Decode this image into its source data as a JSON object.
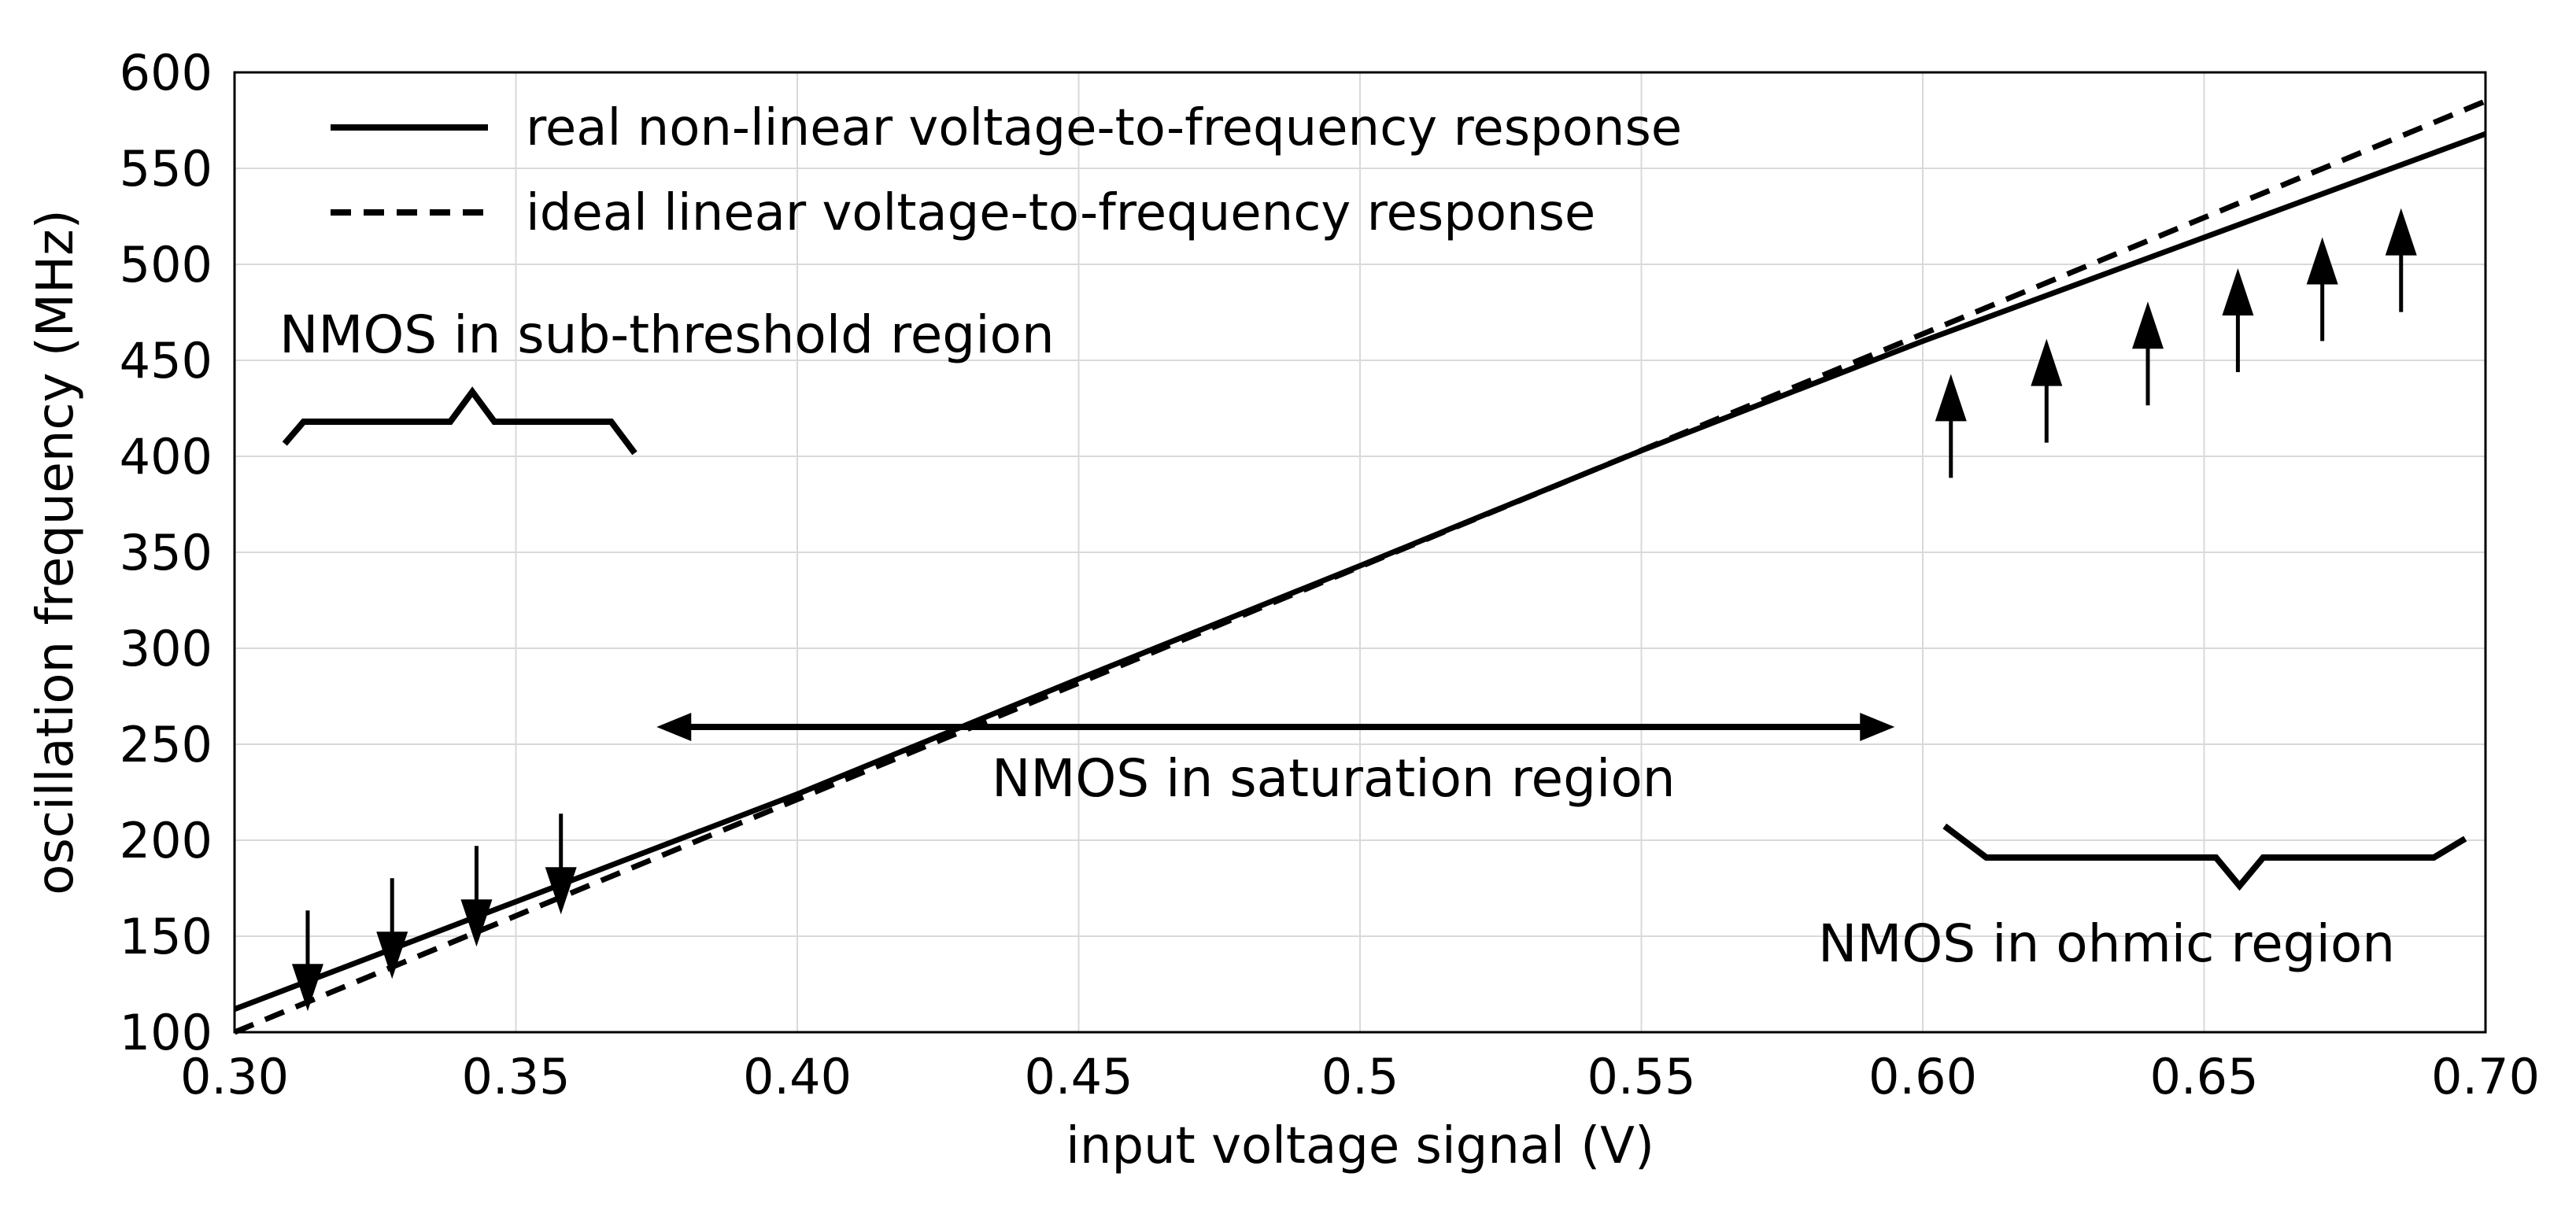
{
  "chart_data": {
    "type": "line",
    "title": "",
    "xlabel": "input voltage signal (V)",
    "ylabel": "oscillation frequency (MHz)",
    "xlim": [
      0.3,
      0.7
    ],
    "ylim": [
      100,
      600
    ],
    "grid": true,
    "legend_position": "top-left",
    "xticks": [
      0.3,
      0.35,
      0.4,
      0.45,
      0.5,
      0.55,
      0.6,
      0.65,
      0.7
    ],
    "xtick_labels": [
      "0.30",
      "0.35",
      "0.40",
      "0.45",
      "0.5",
      "0.55",
      "0.60",
      "0.65",
      "0.70"
    ],
    "yticks": [
      100,
      150,
      200,
      250,
      300,
      350,
      400,
      450,
      500,
      550,
      600
    ],
    "ytick_labels": [
      "100",
      "150",
      "200",
      "250",
      "300",
      "350",
      "400",
      "450",
      "500",
      "550",
      "600"
    ],
    "series": [
      {
        "name": "real non-linear voltage-to-frequency response",
        "style": "solid",
        "x": [
          0.3,
          0.35,
          0.4,
          0.45,
          0.5,
          0.55,
          0.6,
          0.65,
          0.7
        ],
        "y": [
          112,
          168,
          224,
          284,
          343,
          403,
          460,
          514,
          568
        ]
      },
      {
        "name": "ideal linear voltage-to-frequency response",
        "style": "dashed",
        "x": [
          0.3,
          0.7
        ],
        "y": [
          100,
          585
        ]
      }
    ],
    "annotations": {
      "subthreshold": {
        "label": "NMOS in sub-threshold region",
        "x_range": [
          0.305,
          0.37
        ]
      },
      "saturation": {
        "label": "NMOS in saturation region",
        "x_range": [
          0.375,
          0.595
        ],
        "y": 259
      },
      "ohmic": {
        "label": "NMOS in ohmic region",
        "x_range": [
          0.605,
          0.695
        ]
      },
      "down_arrows_x": [
        0.313,
        0.328,
        0.343,
        0.358
      ],
      "up_arrows_x": [
        0.605,
        0.622,
        0.64,
        0.656,
        0.671,
        0.685
      ]
    }
  }
}
